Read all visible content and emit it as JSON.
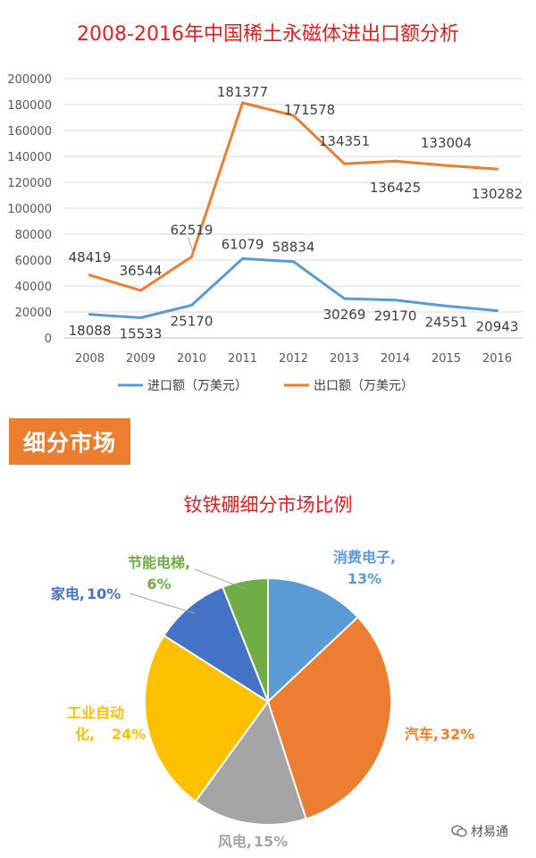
{
  "line_chart_title": "2008-2016年中国稀土永磁体进出口额分析",
  "section_banner": "细分市场",
  "pie_chart_title": "钕铁硼细分市场比例",
  "watermark": "材易通",
  "colors": {
    "title_red": "#e02020",
    "import_blue": "#5b9bd5",
    "export_orange": "#ed7d31",
    "axis_text": "#595959",
    "grid": "#d9d9d9"
  },
  "chart_data": [
    {
      "type": "line",
      "title": "2008-2016年中国稀土永磁体进出口额分析",
      "categories": [
        "2008",
        "2009",
        "2010",
        "2011",
        "2012",
        "2013",
        "2014",
        "2015",
        "2016"
      ],
      "yticks": [
        "0",
        "20000",
        "40000",
        "60000",
        "80000",
        "100000",
        "120000",
        "140000",
        "160000",
        "180000",
        "200000"
      ],
      "ylim": [
        0,
        200000
      ],
      "grid": true,
      "legend_position": "bottom",
      "series": [
        {
          "name": "进口额（万美元）",
          "color": "#5b9bd5",
          "values": [
            18088,
            15533,
            25170,
            61079,
            58834,
            30269,
            29170,
            24551,
            20943
          ]
        },
        {
          "name": "出口额（万美元）",
          "color": "#ed7d31",
          "values": [
            48419,
            36544,
            62519,
            181377,
            171578,
            134351,
            136425,
            133004,
            130282
          ]
        }
      ]
    },
    {
      "type": "pie",
      "title": "钕铁硼细分市场比例",
      "slices": [
        {
          "label": "消费电子",
          "pct_label": "13%",
          "value": 13,
          "color": "#5b9bd5"
        },
        {
          "label": "汽车",
          "pct_label": "32%",
          "value": 32,
          "color": "#ed7d31"
        },
        {
          "label": "风电",
          "pct_label": "15%",
          "value": 15,
          "color": "#a5a5a5"
        },
        {
          "label": "工业自动化",
          "pct_label": "24%",
          "value": 24,
          "color": "#ffc000"
        },
        {
          "label": "家电",
          "pct_label": "10%",
          "value": 10,
          "color": "#4472c4"
        },
        {
          "label": "节能电梯",
          "pct_label": "6%",
          "value": 6,
          "color": "#70ad47"
        }
      ]
    }
  ]
}
